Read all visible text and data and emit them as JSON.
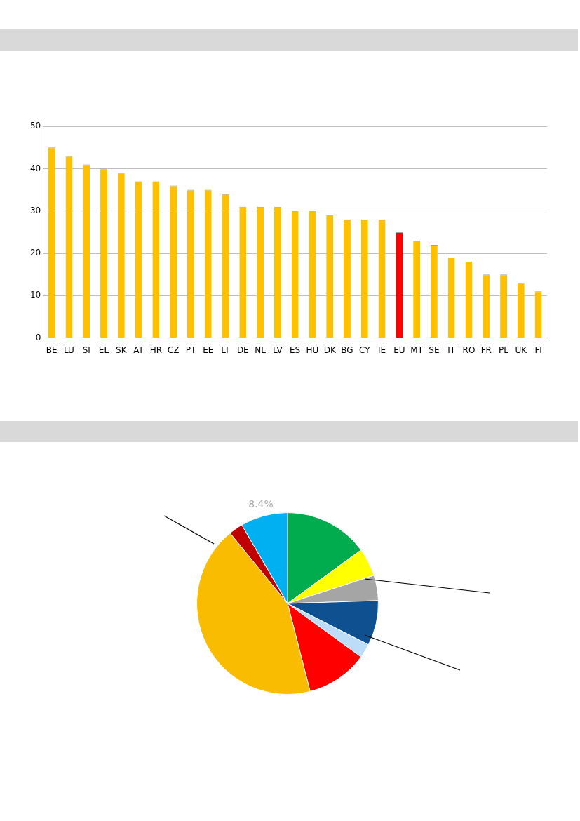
{
  "chart_data": [
    {
      "type": "bar",
      "categories": [
        "BE",
        "LU",
        "SI",
        "EL",
        "SK",
        "AT",
        "HR",
        "CZ",
        "PT",
        "EE",
        "LT",
        "DE",
        "NL",
        "LV",
        "ES",
        "HU",
        "DK",
        "BG",
        "CY",
        "IE",
        "EU",
        "MT",
        "SE",
        "IT",
        "RO",
        "FR",
        "PL",
        "UK",
        "FI"
      ],
      "values": [
        45,
        43,
        41,
        40,
        39,
        37,
        37,
        36,
        35,
        35,
        34,
        31,
        31,
        31,
        30,
        30,
        29,
        28,
        28,
        28,
        25,
        23,
        22,
        19,
        18,
        15,
        15,
        13,
        11
      ],
      "colors": [
        "#ffc000",
        "#ffc000",
        "#ffc000",
        "#ffc000",
        "#ffc000",
        "#ffc000",
        "#ffc000",
        "#ffc000",
        "#ffc000",
        "#ffc000",
        "#ffc000",
        "#ffc000",
        "#ffc000",
        "#ffc000",
        "#ffc000",
        "#ffc000",
        "#ffc000",
        "#ffc000",
        "#ffc000",
        "#ffc000",
        "#ff0000",
        "#ffc000",
        "#ffc000",
        "#ffc000",
        "#ffc000",
        "#ffc000",
        "#ffc000",
        "#ffc000",
        "#ffc000"
      ],
      "ylim": [
        0,
        50
      ],
      "yticks": [
        0,
        10,
        20,
        30,
        40,
        50
      ],
      "grid": "y",
      "legend": false
    },
    {
      "type": "pie",
      "categories": [
        null,
        null,
        null,
        null,
        null,
        null,
        null,
        null,
        null
      ],
      "values": [
        15,
        5,
        4.5,
        8,
        2.5,
        11,
        43.1,
        2.5,
        8.4
      ],
      "colors": [
        "#00ac4e",
        "#ffff00",
        "#a5a5a5",
        "#0f5091",
        "#bcdcf8",
        "#ff0000",
        "#f9bc00",
        "#c00000",
        "#00b0f0"
      ],
      "value_labels": [
        null,
        null,
        null,
        null,
        null,
        null,
        null,
        null,
        "8.4%"
      ],
      "legend": false
    }
  ]
}
